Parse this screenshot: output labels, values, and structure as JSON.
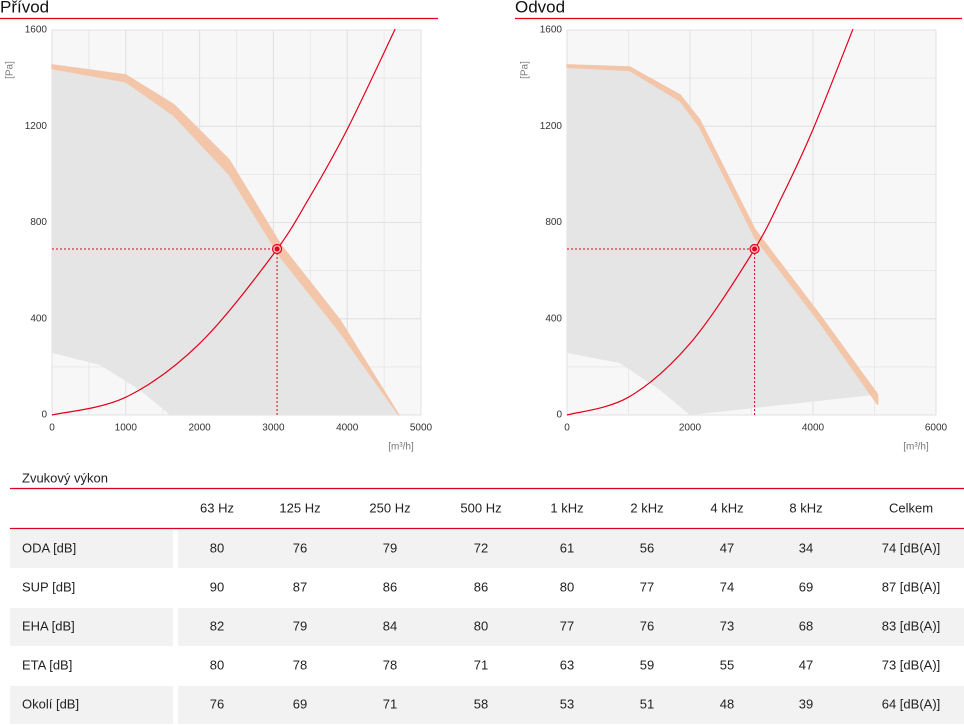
{
  "chart_data": [
    {
      "type": "fan-curve",
      "title": "Přívod",
      "ylabel": "[Pa]",
      "xlabel": "[m³/h]",
      "xlim": [
        0,
        5000
      ],
      "xticks": [
        0,
        1000,
        2000,
        3000,
        4000,
        5000
      ],
      "ylim": [
        0,
        1600
      ],
      "yticks": [
        0,
        400,
        800,
        1200,
        1600
      ],
      "grid": true,
      "area_color": "#e4e5e4",
      "band_color": "#f3c6aa",
      "line_color": "#e3001b",
      "max_curve": {
        "x": [
          0,
          1000,
          1650,
          2400,
          3100,
          3900,
          4700
        ],
        "upper": [
          1455,
          1413,
          1290,
          1060,
          707,
          395,
          0
        ],
        "lower": [
          1440,
          1385,
          1245,
          1000,
          655,
          345,
          0
        ]
      },
      "min_curve": {
        "x": [
          0,
          650,
          1190,
          1600
        ],
        "values": [
          258,
          208,
          104,
          0
        ]
      },
      "system_curve": {
        "x": [
          0,
          1000,
          2000,
          3000,
          3500,
          4000,
          4650
        ],
        "values": [
          0,
          74,
          297,
          668,
          910,
          1187,
          1604
        ]
      },
      "operating_point": {
        "x": 3050,
        "y": 690
      }
    },
    {
      "type": "fan-curve",
      "title": "Odvod",
      "ylabel": "[Pa]",
      "xlabel": "[m³/h]",
      "xlim": [
        0,
        6000
      ],
      "xticks": [
        0,
        2000,
        4000,
        6000
      ],
      "ylim": [
        0,
        1600
      ],
      "yticks": [
        0,
        400,
        800,
        1200,
        1600
      ],
      "grid": true,
      "area_color": "#e4e5e4",
      "band_color": "#f3c6aa",
      "line_color": "#e3001b",
      "max_curve": {
        "x": [
          0,
          1020,
          1840,
          2160,
          3060,
          4110,
          5050
        ],
        "upper": [
          1455,
          1446,
          1330,
          1226,
          769,
          416,
          85
        ],
        "lower": [
          1445,
          1432,
          1305,
          1195,
          735,
          385,
          45
        ]
      },
      "min_curve": {
        "x": [
          0,
          860,
          1510,
          2000
        ],
        "values": [
          258,
          216,
          104,
          0
        ]
      },
      "system_curve": {
        "x": [
          0,
          1000,
          2000,
          3000,
          3500,
          4000,
          4650
        ],
        "values": [
          0,
          74,
          297,
          668,
          910,
          1187,
          1604
        ]
      },
      "operating_point": {
        "x": 3050,
        "y": 690
      }
    }
  ],
  "table": {
    "title": "Zvukový výkon",
    "header": [
      "63 Hz",
      "125 Hz",
      "250 Hz",
      "500 Hz",
      "1 kHz",
      "2 kHz",
      "4 kHz",
      "8 kHz",
      "Celkem"
    ],
    "rows": [
      [
        "ODA [dB]",
        "80",
        "76",
        "79",
        "72",
        "61",
        "56",
        "47",
        "34",
        "74 [dB(A)]"
      ],
      [
        "SUP [dB]",
        "90",
        "87",
        "86",
        "86",
        "80",
        "77",
        "74",
        "69",
        "87 [dB(A)]"
      ],
      [
        "EHA [dB]",
        "82",
        "79",
        "84",
        "80",
        "77",
        "76",
        "73",
        "68",
        "83 [dB(A)]"
      ],
      [
        "ETA [dB]",
        "80",
        "78",
        "78",
        "71",
        "63",
        "59",
        "55",
        "47",
        "73 [dB(A)]"
      ],
      [
        "Okolí [dB]",
        "76",
        "69",
        "71",
        "58",
        "53",
        "51",
        "48",
        "39",
        "64 [dB(A)]"
      ]
    ]
  }
}
